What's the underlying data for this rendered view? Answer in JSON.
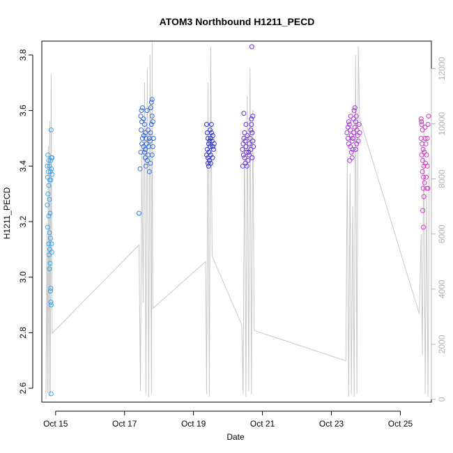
{
  "chart_data": {
    "type": "scatter",
    "title": "ATOM3 Northbound H1211_PECD",
    "xlabel": "Date",
    "ylabel": "H1211_PECD",
    "xlim": [
      14.6,
      25.9
    ],
    "ylim": [
      2.55,
      3.85
    ],
    "y2lim": [
      -100,
      13000
    ],
    "x_ticks": [
      {
        "value": 15,
        "label": "Oct 15"
      },
      {
        "value": 17,
        "label": "Oct 17"
      },
      {
        "value": 19,
        "label": "Oct 19"
      },
      {
        "value": 21,
        "label": "Oct 21"
      },
      {
        "value": 23,
        "label": "Oct 23"
      },
      {
        "value": 25,
        "label": "Oct 25"
      }
    ],
    "y_ticks": [
      {
        "value": 2.6,
        "label": "2.6"
      },
      {
        "value": 2.8,
        "label": "2.8"
      },
      {
        "value": 3.0,
        "label": "3.0"
      },
      {
        "value": 3.2,
        "label": "3.2"
      },
      {
        "value": 3.4,
        "label": "3.4"
      },
      {
        "value": 3.6,
        "label": "3.6"
      },
      {
        "value": 3.8,
        "label": "3.8"
      }
    ],
    "y2_ticks": [
      {
        "value": 0,
        "label": "0"
      },
      {
        "value": 2000,
        "label": "2000"
      },
      {
        "value": 4000,
        "label": "4000"
      },
      {
        "value": 6000,
        "label": "6000"
      },
      {
        "value": 8000,
        "label": "8000"
      },
      {
        "value": 10000,
        "label": "10000"
      },
      {
        "value": 12000,
        "label": "12000"
      }
    ],
    "grid": false,
    "legend": "none",
    "series": [
      {
        "color": "#3aa0e8",
        "points": [
          [
            14.78,
            3.44
          ],
          [
            14.8,
            3.42
          ],
          [
            14.76,
            3.4
          ],
          [
            14.82,
            3.4
          ],
          [
            14.79,
            3.38
          ],
          [
            14.85,
            3.38
          ],
          [
            14.77,
            3.36
          ],
          [
            14.83,
            3.35
          ],
          [
            14.8,
            3.33
          ],
          [
            14.78,
            3.3
          ],
          [
            14.82,
            3.28
          ],
          [
            14.76,
            3.26
          ],
          [
            14.8,
            3.22
          ],
          [
            14.84,
            3.23
          ],
          [
            14.77,
            3.18
          ],
          [
            14.82,
            3.16
          ],
          [
            14.85,
            3.14
          ],
          [
            14.8,
            3.12
          ],
          [
            14.83,
            3.1
          ],
          [
            14.81,
            3.08
          ],
          [
            14.84,
            3.05
          ],
          [
            14.82,
            3.03
          ],
          [
            14.86,
            2.96
          ],
          [
            14.85,
            2.95
          ],
          [
            14.86,
            2.91
          ],
          [
            14.87,
            2.9
          ],
          [
            14.88,
            3.43
          ],
          [
            14.9,
            3.43
          ],
          [
            14.86,
            3.42
          ],
          [
            14.88,
            3.39
          ],
          [
            14.9,
            3.37
          ],
          [
            14.86,
            3.35
          ],
          [
            14.87,
            3.53
          ],
          [
            14.88,
            3.12
          ],
          [
            14.89,
            3.09
          ],
          [
            14.87,
            2.58
          ]
        ]
      },
      {
        "color": "#2f6bea",
        "points": [
          [
            17.42,
            3.23
          ],
          [
            17.45,
            3.39
          ],
          [
            17.47,
            3.45
          ],
          [
            17.5,
            3.48
          ],
          [
            17.52,
            3.5
          ],
          [
            17.48,
            3.53
          ],
          [
            17.5,
            3.56
          ],
          [
            17.47,
            3.58
          ],
          [
            17.49,
            3.6
          ],
          [
            17.52,
            3.61
          ],
          [
            17.55,
            3.57
          ],
          [
            17.58,
            3.55
          ],
          [
            17.6,
            3.52
          ],
          [
            17.62,
            3.5
          ],
          [
            17.55,
            3.47
          ],
          [
            17.58,
            3.45
          ],
          [
            17.6,
            3.43
          ],
          [
            17.62,
            3.4
          ],
          [
            17.66,
            3.42
          ],
          [
            17.68,
            3.44
          ],
          [
            17.7,
            3.47
          ],
          [
            17.72,
            3.5
          ],
          [
            17.75,
            3.52
          ],
          [
            17.78,
            3.55
          ],
          [
            17.8,
            3.58
          ],
          [
            17.76,
            3.61
          ],
          [
            17.78,
            3.63
          ],
          [
            17.8,
            3.64
          ],
          [
            17.72,
            3.38
          ],
          [
            17.75,
            3.41
          ],
          [
            17.8,
            3.44
          ],
          [
            17.82,
            3.47
          ],
          [
            17.84,
            3.5
          ],
          [
            17.65,
            3.6
          ],
          [
            17.6,
            3.46
          ],
          [
            17.68,
            3.53
          ],
          [
            17.74,
            3.49
          ],
          [
            17.82,
            3.56
          ],
          [
            17.56,
            3.51
          ],
          [
            17.64,
            3.48
          ]
        ]
      },
      {
        "color": "#2a2fe6",
        "points": [
          [
            19.38,
            3.55
          ],
          [
            19.4,
            3.52
          ],
          [
            19.42,
            3.5
          ],
          [
            19.44,
            3.48
          ],
          [
            19.4,
            3.46
          ],
          [
            19.38,
            3.44
          ],
          [
            19.42,
            3.43
          ],
          [
            19.45,
            3.45
          ],
          [
            19.48,
            3.47
          ],
          [
            19.5,
            3.5
          ],
          [
            19.52,
            3.52
          ],
          [
            19.54,
            3.49
          ],
          [
            19.56,
            3.47
          ],
          [
            19.5,
            3.44
          ],
          [
            19.46,
            3.42
          ],
          [
            19.44,
            3.4
          ],
          [
            19.5,
            3.41
          ],
          [
            19.55,
            3.43
          ],
          [
            19.58,
            3.46
          ],
          [
            19.48,
            3.53
          ],
          [
            19.52,
            3.55
          ],
          [
            19.42,
            3.41
          ],
          [
            19.56,
            3.51
          ],
          [
            19.6,
            3.48
          ],
          [
            19.47,
            3.49
          ]
        ]
      },
      {
        "color": "#6a2ee8",
        "points": [
          [
            20.42,
            3.46
          ],
          [
            20.44,
            3.48
          ],
          [
            20.46,
            3.5
          ],
          [
            20.48,
            3.52
          ],
          [
            20.5,
            3.49
          ],
          [
            20.52,
            3.47
          ],
          [
            20.54,
            3.45
          ],
          [
            20.45,
            3.44
          ],
          [
            20.48,
            3.43
          ],
          [
            20.5,
            3.41
          ],
          [
            20.55,
            3.4
          ],
          [
            20.58,
            3.42
          ],
          [
            20.6,
            3.45
          ],
          [
            20.62,
            3.48
          ],
          [
            20.64,
            3.5
          ],
          [
            20.66,
            3.53
          ],
          [
            20.68,
            3.55
          ],
          [
            20.7,
            3.52
          ],
          [
            20.72,
            3.49
          ],
          [
            20.74,
            3.47
          ],
          [
            20.68,
            3.57
          ],
          [
            20.72,
            3.58
          ],
          [
            20.46,
            3.59
          ],
          [
            20.43,
            3.4
          ],
          [
            20.52,
            3.55
          ],
          [
            20.56,
            3.51
          ],
          [
            20.62,
            3.44
          ],
          [
            20.7,
            3.43
          ],
          [
            20.66,
            3.46
          ],
          [
            20.69,
            3.83
          ]
        ]
      },
      {
        "color": "#b22ee8",
        "points": [
          [
            23.45,
            3.52
          ],
          [
            23.48,
            3.54
          ],
          [
            23.5,
            3.56
          ],
          [
            23.52,
            3.55
          ],
          [
            23.55,
            3.53
          ],
          [
            23.58,
            3.51
          ],
          [
            23.6,
            3.49
          ],
          [
            23.62,
            3.5
          ],
          [
            23.65,
            3.52
          ],
          [
            23.68,
            3.54
          ],
          [
            23.7,
            3.56
          ],
          [
            23.72,
            3.58
          ],
          [
            23.66,
            3.6
          ],
          [
            23.68,
            3.61
          ],
          [
            23.55,
            3.47
          ],
          [
            23.58,
            3.45
          ],
          [
            23.62,
            3.46
          ],
          [
            23.5,
            3.48
          ],
          [
            23.53,
            3.42
          ],
          [
            23.6,
            3.43
          ],
          [
            23.74,
            3.53
          ],
          [
            23.76,
            3.51
          ],
          [
            23.78,
            3.49
          ],
          [
            23.8,
            3.55
          ],
          [
            23.7,
            3.46
          ],
          [
            23.64,
            3.57
          ],
          [
            23.56,
            3.58
          ],
          [
            23.48,
            3.5
          ],
          [
            23.73,
            3.48
          ],
          [
            23.82,
            3.52
          ]
        ]
      },
      {
        "color": "#e02ecf",
        "points": [
          [
            25.6,
            3.57
          ],
          [
            25.62,
            3.55
          ],
          [
            25.64,
            3.53
          ],
          [
            25.6,
            3.5
          ],
          [
            25.63,
            3.48
          ],
          [
            25.66,
            3.46
          ],
          [
            25.62,
            3.44
          ],
          [
            25.65,
            3.42
          ],
          [
            25.68,
            3.4
          ],
          [
            25.64,
            3.38
          ],
          [
            25.67,
            3.36
          ],
          [
            25.7,
            3.34
          ],
          [
            25.66,
            3.32
          ],
          [
            25.68,
            3.29
          ],
          [
            25.65,
            3.24
          ],
          [
            25.67,
            3.18
          ],
          [
            25.72,
            3.5
          ],
          [
            25.74,
            3.48
          ],
          [
            25.76,
            3.44
          ],
          [
            25.78,
            3.4
          ],
          [
            25.75,
            3.36
          ],
          [
            25.77,
            3.32
          ],
          [
            25.8,
            3.55
          ],
          [
            25.82,
            3.58
          ],
          [
            25.72,
            3.54
          ],
          [
            25.78,
            3.5
          ],
          [
            25.61,
            3.56
          ],
          [
            25.69,
            3.45
          ],
          [
            25.73,
            3.41
          ],
          [
            25.8,
            3.32
          ]
        ]
      }
    ],
    "secondary_series": {
      "color": "#c8c8c8",
      "axis": "right",
      "line": [
        [
          14.72,
          0
        ],
        [
          14.75,
          6000
        ],
        [
          14.77,
          200
        ],
        [
          14.79,
          9200
        ],
        [
          14.81,
          100
        ],
        [
          14.83,
          10100
        ],
        [
          14.85,
          200
        ],
        [
          14.87,
          11800
        ],
        [
          14.9,
          2400
        ],
        [
          17.42,
          5600
        ],
        [
          17.46,
          300
        ],
        [
          17.5,
          9000
        ],
        [
          17.54,
          3500
        ],
        [
          17.58,
          11500
        ],
        [
          17.62,
          200
        ],
        [
          17.66,
          12000
        ],
        [
          17.7,
          100
        ],
        [
          17.74,
          12500
        ],
        [
          17.78,
          200
        ],
        [
          17.8,
          13000
        ],
        [
          17.82,
          3300
        ],
        [
          19.35,
          5000
        ],
        [
          19.38,
          200
        ],
        [
          19.42,
          11500
        ],
        [
          19.46,
          100
        ],
        [
          19.5,
          12800
        ],
        [
          19.54,
          5200
        ],
        [
          20.4,
          2700
        ],
        [
          20.44,
          200
        ],
        [
          20.48,
          9500
        ],
        [
          20.52,
          100
        ],
        [
          20.56,
          11000
        ],
        [
          20.6,
          300
        ],
        [
          20.64,
          12000
        ],
        [
          20.68,
          200
        ],
        [
          20.72,
          10500
        ],
        [
          20.76,
          2500
        ],
        [
          23.42,
          1400
        ],
        [
          23.46,
          8800
        ],
        [
          23.5,
          100
        ],
        [
          23.54,
          8200
        ],
        [
          23.58,
          200
        ],
        [
          23.62,
          7000
        ],
        [
          23.66,
          100
        ],
        [
          23.7,
          12500
        ],
        [
          23.74,
          200
        ],
        [
          23.78,
          12800
        ],
        [
          23.82,
          10200
        ],
        [
          25.55,
          3100
        ],
        [
          25.6,
          6000
        ],
        [
          25.64,
          1600
        ],
        [
          25.68,
          10000
        ],
        [
          25.72,
          200
        ],
        [
          25.76,
          7500
        ],
        [
          25.8,
          100
        ],
        [
          25.84,
          8800
        ]
      ]
    }
  }
}
